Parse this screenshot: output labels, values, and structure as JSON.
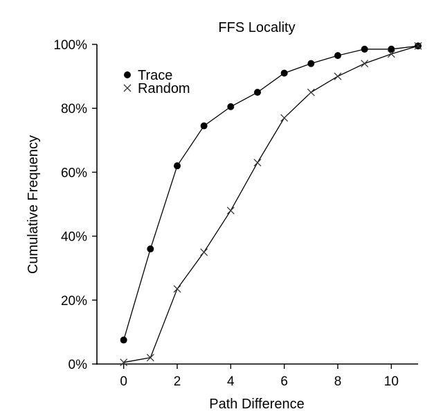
{
  "chart_data": {
    "type": "line",
    "title": "FFS Locality",
    "xlabel": "Path Difference",
    "ylabel": "Cumulative Frequency",
    "xlim": [
      -1,
      11
    ],
    "ylim": [
      0,
      100
    ],
    "xticks": [
      0,
      2,
      4,
      6,
      8,
      10
    ],
    "xtick_labels": [
      "0",
      "2",
      "4",
      "6",
      "8",
      "10"
    ],
    "yticks": [
      0,
      20,
      40,
      60,
      80,
      100
    ],
    "ytick_labels": [
      "0%",
      "20%",
      "40%",
      "60%",
      "80%",
      "100%"
    ],
    "grid": false,
    "legend_position": "top-left",
    "series": [
      {
        "name": "Trace",
        "marker": "filled-circle",
        "color": "#000000",
        "x": [
          0,
          1,
          2,
          3,
          4,
          5,
          6,
          7,
          8,
          9,
          10,
          11
        ],
        "y": [
          7.5,
          36,
          62,
          74.5,
          80.5,
          85,
          91,
          94,
          96.5,
          98.5,
          98.5,
          99.5
        ]
      },
      {
        "name": "Random",
        "marker": "x-cross",
        "color": "#333333",
        "x": [
          0,
          1,
          2,
          3,
          4,
          5,
          6,
          7,
          8,
          9,
          10,
          11
        ],
        "y": [
          0.5,
          2,
          23.5,
          35,
          48,
          63,
          77,
          85,
          90,
          94,
          97,
          99.5
        ]
      }
    ]
  }
}
